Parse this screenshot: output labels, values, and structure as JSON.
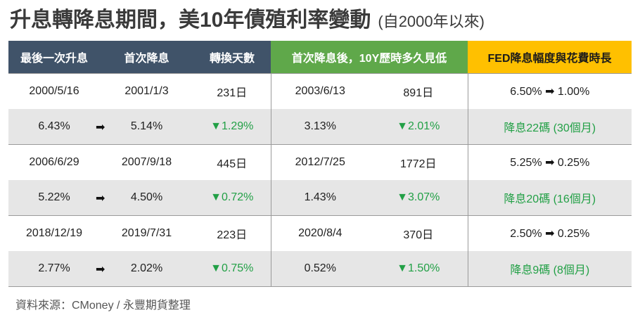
{
  "title": {
    "main": "升息轉降息期間，美10年債殖利率變動",
    "sub": "(自2000年以來)"
  },
  "headers": {
    "last_hike": "最後一次升息",
    "first_cut": "首次降息",
    "days": "轉換天數",
    "after_cut_low": "首次降息後，10Y歷時多久見低",
    "fed": "FED降息幅度與花費時長"
  },
  "arrow_symbol": "➡",
  "rows": [
    {
      "last_hike_date": "2000/5/16",
      "first_cut_date": "2001/1/3",
      "days": "231日",
      "low_date": "2003/6/13",
      "low_days": "891日",
      "fed_from": "6.50%",
      "fed_to": "1.00%",
      "yield_at_hike": "6.43%",
      "yield_at_cut": "5.14%",
      "change": "▼1.29%",
      "yield_low": "3.13%",
      "change_to_low": "▼2.01%",
      "cut_desc": "降息22碼 (30個月)"
    },
    {
      "last_hike_date": "2006/6/29",
      "first_cut_date": "2007/9/18",
      "days": "445日",
      "low_date": "2012/7/25",
      "low_days": "1772日",
      "fed_from": "5.25%",
      "fed_to": "0.25%",
      "yield_at_hike": "5.22%",
      "yield_at_cut": "4.50%",
      "change": "▼0.72%",
      "yield_low": "1.43%",
      "change_to_low": "▼3.07%",
      "cut_desc": "降息20碼 (16個月)"
    },
    {
      "last_hike_date": "2018/12/19",
      "first_cut_date": "2019/7/31",
      "days": "223日",
      "low_date": "2020/8/4",
      "low_days": "370日",
      "fed_from": "2.50%",
      "fed_to": "0.25%",
      "yield_at_hike": "2.77%",
      "yield_at_cut": "2.02%",
      "change": "▼0.75%",
      "yield_low": "0.52%",
      "change_to_low": "▼1.50%",
      "cut_desc": "降息9碼 (8個月)"
    }
  ],
  "colors": {
    "header_dark": "#405369",
    "header_green": "#5fa84a",
    "header_yellow": "#ffc000",
    "down_green": "#22a046",
    "row_grey": "#e6e6e6"
  },
  "source": "資料來源：CMoney / 永豐期貨整理"
}
